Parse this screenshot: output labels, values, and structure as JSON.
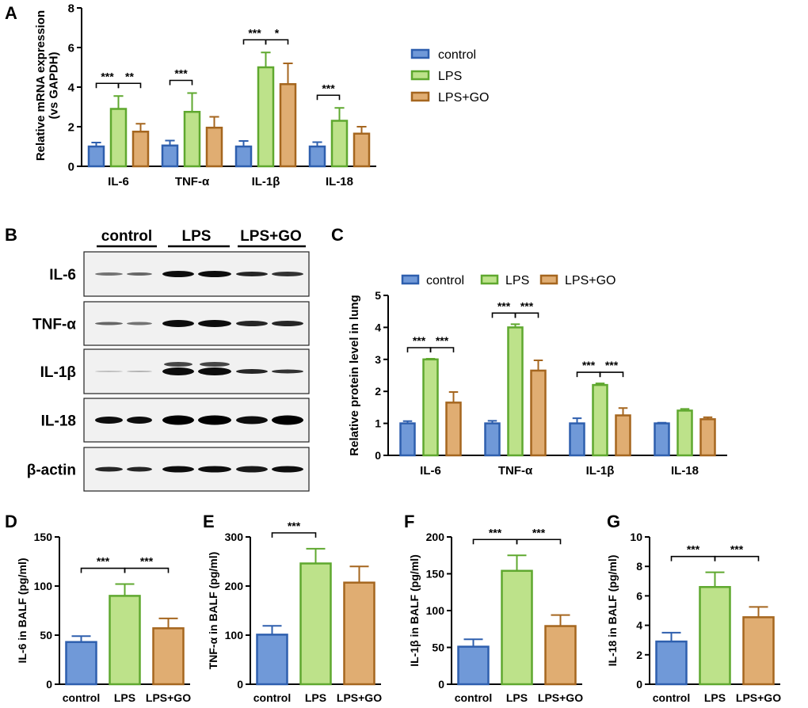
{
  "colors": {
    "control_fill": "#7099d8",
    "control_stroke": "#2e5fae",
    "lps_fill": "#bde28a",
    "lps_stroke": "#5fa82f",
    "go_fill": "#e0ad72",
    "go_stroke": "#a5661f"
  },
  "panel_letters": [
    "A",
    "B",
    "C",
    "D",
    "E",
    "F",
    "G"
  ],
  "western_blot": {
    "group_labels": [
      "control",
      "LPS",
      "LPS+GO"
    ],
    "row_labels": [
      "IL-6",
      "TNF-α",
      "IL-1β",
      "IL-18",
      "β-actin"
    ]
  },
  "chart_data": [
    {
      "id": "A",
      "type": "bar",
      "title": "",
      "xlabel": "",
      "ylabel": "Relative mRNA expression (vs GAPDH)",
      "ylabel_lines": [
        "Relative mRNA expression",
        "(vs GAPDH)"
      ],
      "ylim": [
        0,
        8
      ],
      "yticks": [
        "0",
        "2",
        "4",
        "6",
        "8"
      ],
      "categories": [
        "IL-6",
        "TNF-α",
        "IL-1β",
        "IL-18"
      ],
      "series": [
        {
          "name": "control",
          "values": [
            1.0,
            1.05,
            1.0,
            1.0
          ],
          "errors": [
            0.2,
            0.25,
            0.28,
            0.22
          ]
        },
        {
          "name": "LPS",
          "values": [
            2.9,
            2.75,
            5.0,
            2.3
          ],
          "errors": [
            0.65,
            0.95,
            0.75,
            0.65
          ]
        },
        {
          "name": "LPS+GO",
          "values": [
            1.75,
            1.95,
            4.15,
            1.65
          ],
          "errors": [
            0.4,
            0.55,
            1.05,
            0.35
          ]
        }
      ],
      "legend": [
        "control",
        "LPS",
        "LPS+GO"
      ],
      "legend_position": "right",
      "significance": [
        {
          "category": 0,
          "from": 0,
          "to": 1,
          "label": "***"
        },
        {
          "category": 0,
          "from": 1,
          "to": 2,
          "label": "**"
        },
        {
          "category": 1,
          "from": 0,
          "to": 1,
          "label": "***"
        },
        {
          "category": 2,
          "from": 0,
          "to": 1,
          "label": "***"
        },
        {
          "category": 2,
          "from": 1,
          "to": 2,
          "label": "*"
        },
        {
          "category": 3,
          "from": 0,
          "to": 1,
          "label": "***"
        }
      ]
    },
    {
      "id": "C",
      "type": "bar",
      "title": "",
      "xlabel": "",
      "ylabel": "Relative protein level in lung",
      "ylim": [
        0,
        5
      ],
      "yticks": [
        "0",
        "1",
        "2",
        "3",
        "4",
        "5"
      ],
      "categories": [
        "IL-6",
        "TNF-α",
        "IL-1β",
        "IL-18"
      ],
      "series": [
        {
          "name": "control",
          "values": [
            1.0,
            1.0,
            1.0,
            1.0
          ],
          "errors": [
            0.07,
            0.08,
            0.16,
            0.02
          ]
        },
        {
          "name": "LPS",
          "values": [
            3.0,
            4.0,
            2.2,
            1.4
          ],
          "errors": [
            0.02,
            0.1,
            0.05,
            0.05
          ]
        },
        {
          "name": "LPS+GO",
          "values": [
            1.65,
            2.65,
            1.25,
            1.13
          ],
          "errors": [
            0.33,
            0.32,
            0.23,
            0.06
          ]
        }
      ],
      "legend": [
        "control",
        "LPS",
        "LPS+GO"
      ],
      "legend_position": "top",
      "significance": [
        {
          "category": 0,
          "from": 0,
          "to": 1,
          "label": "***"
        },
        {
          "category": 0,
          "from": 1,
          "to": 2,
          "label": "***"
        },
        {
          "category": 1,
          "from": 0,
          "to": 1,
          "label": "***"
        },
        {
          "category": 1,
          "from": 1,
          "to": 2,
          "label": "***"
        },
        {
          "category": 2,
          "from": 0,
          "to": 1,
          "label": "***"
        },
        {
          "category": 2,
          "from": 1,
          "to": 2,
          "label": "***"
        }
      ]
    },
    {
      "id": "D",
      "type": "bar",
      "title": "",
      "xlabel": "",
      "ylabel": "IL-6 in BALF (pg/ml)",
      "ylim": [
        0,
        150
      ],
      "yticks": [
        "0",
        "50",
        "100",
        "150"
      ],
      "categories": [
        "control",
        "LPS",
        "LPS+GO"
      ],
      "values": [
        43,
        90,
        57
      ],
      "errors": [
        6,
        12,
        10
      ],
      "significance": [
        {
          "from": 0,
          "to": 1,
          "label": "***"
        },
        {
          "from": 1,
          "to": 2,
          "label": "***"
        }
      ]
    },
    {
      "id": "E",
      "type": "bar",
      "title": "",
      "xlabel": "",
      "ylabel": "TNF-α in BALF (pg/ml)",
      "ylim": [
        0,
        300
      ],
      "yticks": [
        "0",
        "100",
        "200",
        "300"
      ],
      "categories": [
        "control",
        "LPS",
        "LPS+GO"
      ],
      "values": [
        101,
        246,
        207
      ],
      "errors": [
        18,
        30,
        33
      ],
      "significance": [
        {
          "from": 0,
          "to": 1,
          "label": "***"
        }
      ]
    },
    {
      "id": "F",
      "type": "bar",
      "title": "",
      "xlabel": "",
      "ylabel": "IL-1β in BALF (pg/ml)",
      "ylim": [
        0,
        200
      ],
      "yticks": [
        "0",
        "50",
        "100",
        "150",
        "200"
      ],
      "categories": [
        "control",
        "LPS",
        "LPS+GO"
      ],
      "values": [
        51,
        154,
        79
      ],
      "errors": [
        10,
        21,
        15
      ],
      "significance": [
        {
          "from": 0,
          "to": 1,
          "label": "***"
        },
        {
          "from": 1,
          "to": 2,
          "label": "***"
        }
      ]
    },
    {
      "id": "G",
      "type": "bar",
      "title": "",
      "xlabel": "",
      "ylabel": "IL-18 in BALF (pg/ml)",
      "ylim": [
        0,
        10
      ],
      "yticks": [
        "0",
        "2",
        "4",
        "6",
        "8",
        "10"
      ],
      "categories": [
        "control",
        "LPS",
        "LPS+GO"
      ],
      "values": [
        2.9,
        6.6,
        4.55
      ],
      "errors": [
        0.6,
        1.0,
        0.7
      ],
      "significance": [
        {
          "from": 0,
          "to": 1,
          "label": "***"
        },
        {
          "from": 1,
          "to": 2,
          "label": "***"
        }
      ]
    }
  ]
}
